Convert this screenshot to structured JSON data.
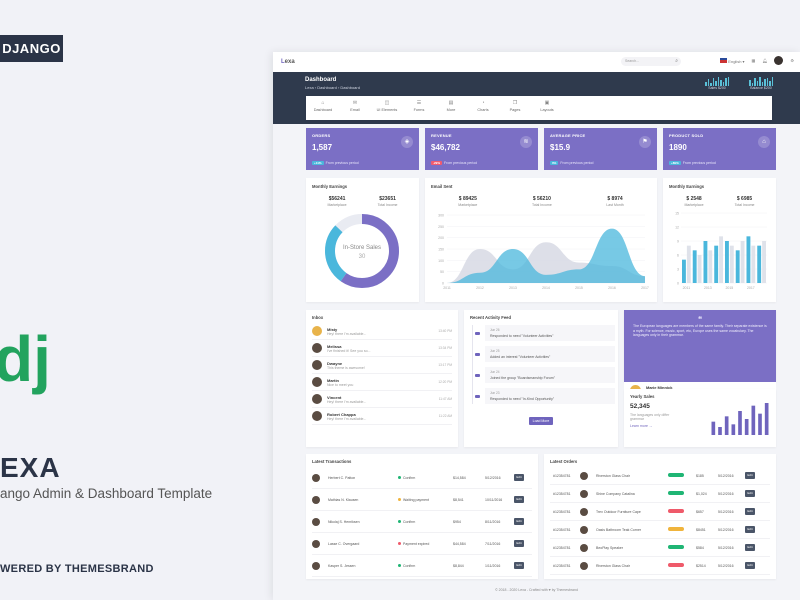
{
  "promo": {
    "badge": "DJANGO",
    "logo_letters": "dj",
    "name": "EXA",
    "subtitle": "ango Admin & Dashboard Template",
    "powered": "WERED BY THEMESBRAND"
  },
  "topbar": {
    "logo_prefix": "L",
    "logo_rest": "exa",
    "search_placeholder": "Search...",
    "language": "English"
  },
  "hero": {
    "title": "Dashboard",
    "breadcrumb": [
      "Lexa",
      "Dashboard",
      "Dashboard"
    ],
    "spark1_label": "Sales $200",
    "spark2_label": "Balance $200"
  },
  "nav": [
    "Dashboard",
    "Email",
    "UI Elements",
    "Forms",
    "More",
    "Charts",
    "Pages",
    "Layouts"
  ],
  "stats": [
    {
      "label": "ORDERS",
      "value": "1,587",
      "badge": "+11%",
      "foot": "From previous period"
    },
    {
      "label": "REVENUE",
      "value": "$46,782",
      "badge": "-29%",
      "foot": "From previous period"
    },
    {
      "label": "AVERAGE PRICE",
      "value": "$15.9",
      "badge": "0%",
      "foot": "From previous period"
    },
    {
      "label": "PRODUCT SOLD",
      "value": "1890",
      "badge": "+89%",
      "foot": "From previous period"
    }
  ],
  "monthly": {
    "title": "Monthly Earnings",
    "k1": "$56241",
    "l1": "Marketplace",
    "k2": "$23651",
    "l2": "Total Income",
    "donut_title": "In-Store Sales",
    "donut_value": "30"
  },
  "email_sent": {
    "title": "Email Sent",
    "k1": "$ 89425",
    "l1": "Marketplace",
    "k2": "$ 56210",
    "l2": "Total Income",
    "k3": "$ 8974",
    "l3": "Last Month"
  },
  "monthly2": {
    "title": "Monthly Earnings",
    "k1": "$ 2548",
    "l1": "Marketplace",
    "k2": "$ 6985",
    "l2": "Total Income"
  },
  "chart_data": [
    {
      "type": "area",
      "title": "Email Sent",
      "categories": [
        "2011",
        "2012",
        "2013",
        "2014",
        "2015",
        "2016",
        "2017"
      ],
      "series": [
        {
          "values": [
            0,
            150,
            60,
            180,
            90,
            75,
            30
          ]
        },
        {
          "values": [
            0,
            45,
            150,
            36,
            60,
            240,
            30
          ]
        }
      ],
      "ylim": [
        0,
        300
      ],
      "yticks": [
        "0",
        "50",
        "100",
        "150",
        "200",
        "250",
        "300"
      ]
    },
    {
      "type": "bar",
      "title": "Monthly Earnings",
      "categories": [
        "2011",
        "2012",
        "2013",
        "2014",
        "2015",
        "2016",
        "2017",
        "2018"
      ],
      "series": [
        {
          "values": [
            5,
            7,
            9,
            8,
            9,
            7,
            10,
            8
          ]
        },
        {
          "values": [
            8,
            6,
            7,
            10,
            8,
            9,
            8,
            9
          ]
        }
      ],
      "ylim": [
        0,
        15
      ],
      "yticks": [
        "0",
        "3",
        "6",
        "9",
        "12",
        "15"
      ]
    }
  ],
  "inbox": {
    "title": "Inbox",
    "items": [
      {
        "name": "Misty",
        "msg": "Hey! there I'm available...",
        "time": "13:40 PM"
      },
      {
        "name": "Melissa",
        "msg": "I've finished it! See you so...",
        "time": "13:34 PM"
      },
      {
        "name": "Dwayne",
        "msg": "This theme is awesome!",
        "time": "13:17 PM"
      },
      {
        "name": "Martin",
        "msg": "Nice to meet you",
        "time": "12:20 PM"
      },
      {
        "name": "Vincent",
        "msg": "Hey! there I'm available...",
        "time": "11:47 AM"
      },
      {
        "name": "Robert Chappa",
        "msg": "Hey! there I'm available...",
        "time": "11:22 AM"
      }
    ]
  },
  "activity": {
    "title": "Recent Activity Feed",
    "items": [
      {
        "date": "Jun 26",
        "text": "Responded to need \"Volunteer Activities\""
      },
      {
        "date": "Jun 25",
        "text": "Added an interest \"Volunteer Activities\""
      },
      {
        "date": "Jun 24",
        "text": "Joined the group \"Boardsmanship Forum\""
      },
      {
        "date": "Jun 23",
        "text": "Responded to need \"In-Kind Opportunity\""
      }
    ],
    "button": "Load More"
  },
  "quote": {
    "text": "The European languages are members of the same family. Their separate existence is a myth. For science, music, sport, etc, Europe uses the same vocabulary. The languages only in their grammar.",
    "name": "Marie Minnick",
    "role": "Marketing Manager"
  },
  "yearly": {
    "title": "Yearly Sales",
    "value": "52,345",
    "desc": "The languages only differ grammar",
    "link": "Learn more →",
    "bars": [
      5,
      3,
      7,
      4,
      9,
      6,
      11,
      8,
      12
    ]
  },
  "transactions": {
    "title": "Latest Transactions",
    "rows": [
      {
        "name": "Herbert C. Patton",
        "status": "Confirm",
        "color": "#1fb574",
        "amount": "$14,584",
        "date": "5/12/2016",
        "btn": "Edit"
      },
      {
        "name": "Mathias N. Klausen",
        "status": "Waiting payment",
        "color": "#f0b43c",
        "amount": "$8,541",
        "date": "10/11/2016",
        "btn": "Edit"
      },
      {
        "name": "Nikolaj S. Henriksen",
        "status": "Confirm",
        "color": "#1fb574",
        "amount": "$954",
        "date": "8/11/2016",
        "btn": "Edit"
      },
      {
        "name": "Lasse C. Overgaard",
        "status": "Payment expired",
        "color": "#ef5a6a",
        "amount": "$44,584",
        "date": "7/11/2016",
        "btn": "Edit"
      },
      {
        "name": "Kasper S. Jessen",
        "status": "Confirm",
        "color": "#1fb574",
        "amount": "$8,844",
        "date": "1/11/2016",
        "btn": "Edit"
      }
    ]
  },
  "orders": {
    "title": "Latest Orders",
    "rows": [
      {
        "id": "#12354781",
        "name": "Riverston Glass Chair",
        "color": "#1fb574",
        "price": "$185",
        "date": "5/12/2016",
        "btn": "Edit"
      },
      {
        "id": "#12354781",
        "name": "Shine Company Catalina",
        "color": "#1fb574",
        "price": "$1,024",
        "date": "5/12/2016",
        "btn": "Edit"
      },
      {
        "id": "#12354781",
        "name": "Trex Outdoor Furniture Cape",
        "color": "#ef5a6a",
        "price": "$657",
        "date": "5/12/2016",
        "btn": "Edit"
      },
      {
        "id": "#12354781",
        "name": "Oasis Bathroom Teak Corner",
        "color": "#f0b43c",
        "price": "$8451",
        "date": "5/12/2016",
        "btn": "Edit"
      },
      {
        "id": "#12354781",
        "name": "BeoPlay Speaker",
        "color": "#1fb574",
        "price": "$584",
        "date": "5/12/2016",
        "btn": "Edit"
      },
      {
        "id": "#12354781",
        "name": "Riverston Glass Chair",
        "color": "#ef5a6a",
        "price": "$2514",
        "date": "5/12/2016",
        "btn": "Edit"
      }
    ]
  },
  "footer": "© 2018 - 2020 Lexa - Crafted with ♥ by Themesbrand"
}
